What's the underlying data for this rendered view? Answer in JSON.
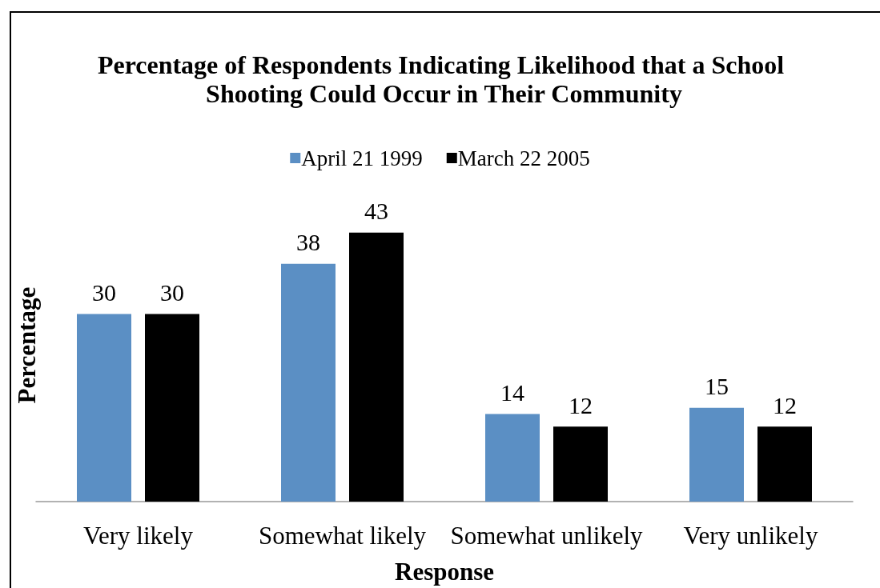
{
  "chart_data": {
    "type": "bar",
    "title": "Percentage of Respondents Indicating Likelihood that a School Shooting Could Occur in Their Community",
    "xlabel": "Response",
    "ylabel": "Percentage",
    "categories": [
      "Very likely",
      "Somewhat likely",
      "Somewhat unlikely",
      "Very unlikely"
    ],
    "series": [
      {
        "name": "April 21 1999",
        "color": "#5b8fc4",
        "values": [
          30,
          38,
          14,
          15
        ]
      },
      {
        "name": "March 22 2005",
        "color": "#000000",
        "values": [
          30,
          43,
          12,
          12
        ]
      }
    ],
    "data_labels": true,
    "legend": "top",
    "grid": false,
    "tick_labels": "x"
  }
}
